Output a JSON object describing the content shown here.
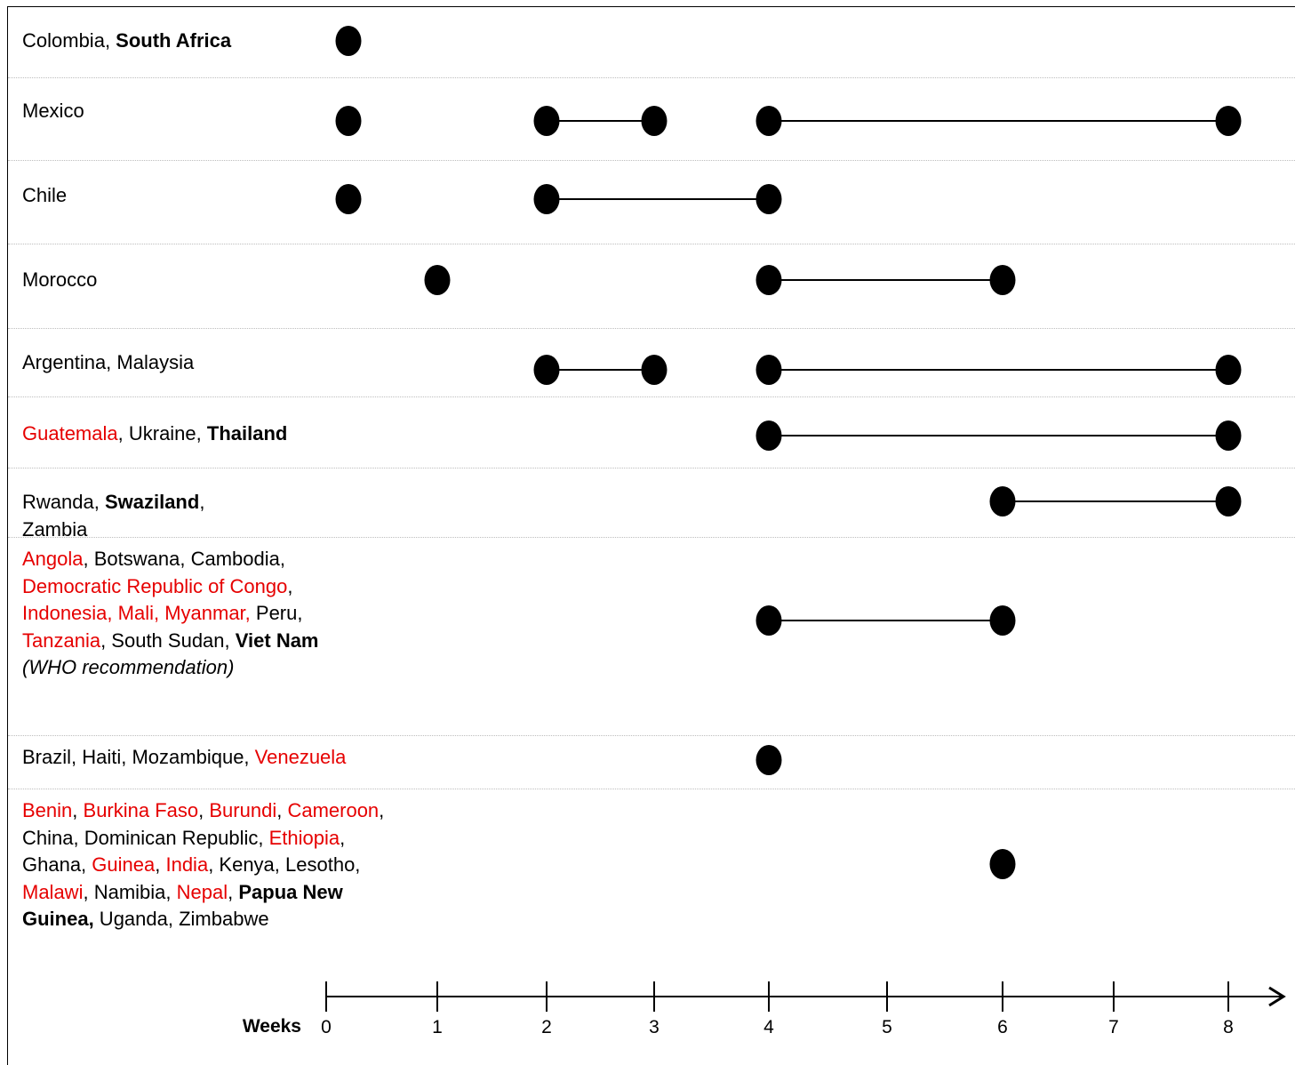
{
  "chart_data": {
    "type": "timeline",
    "x_axis": {
      "label": "Weeks",
      "ticks": [
        0,
        1,
        2,
        3,
        4,
        5,
        6,
        7,
        8
      ]
    },
    "rows": [
      {
        "countries": [
          {
            "t": "Colombia"
          },
          {
            "t": ", "
          },
          {
            "t": "South Africa",
            "b": true
          }
        ],
        "points": [
          0.2
        ],
        "ranges": []
      },
      {
        "countries": [
          {
            "t": "Mexico"
          }
        ],
        "points": [
          0.2
        ],
        "ranges": [
          [
            2,
            3
          ],
          [
            4,
            8
          ]
        ]
      },
      {
        "countries": [
          {
            "t": "Chile"
          }
        ],
        "points": [
          0.2
        ],
        "ranges": [
          [
            2,
            4
          ]
        ]
      },
      {
        "countries": [
          {
            "t": "Morocco"
          }
        ],
        "points": [
          1
        ],
        "ranges": [
          [
            4,
            6
          ]
        ]
      },
      {
        "countries": [
          {
            "t": "Argentina, Malaysia"
          }
        ],
        "points": [],
        "ranges": [
          [
            2,
            3
          ],
          [
            4,
            8
          ]
        ]
      },
      {
        "countries": [
          {
            "t": "Guatemala",
            "r": true
          },
          {
            "t": ", Ukraine, "
          },
          {
            "t": "Thailand",
            "b": true
          }
        ],
        "points": [],
        "ranges": [
          [
            4,
            8
          ]
        ]
      },
      {
        "countries": [
          {
            "t": "Rwanda, "
          },
          {
            "t": "Swaziland",
            "b": true
          },
          {
            "t": ","
          },
          {
            "br": true
          },
          {
            "t": "Zambia"
          }
        ],
        "points": [],
        "ranges": [
          [
            6,
            8
          ]
        ]
      },
      {
        "countries": [
          {
            "t": "Angola",
            "r": true
          },
          {
            "t": ", Botswana, Cambodia,"
          },
          {
            "br": true
          },
          {
            "t": "Democratic Republic of Congo",
            "r": true
          },
          {
            "t": ","
          },
          {
            "br": true
          },
          {
            "t": "Indonesia, Mali, Myanmar,",
            "r": true
          },
          {
            "t": " Peru,"
          },
          {
            "br": true
          },
          {
            "t": "Tanzania",
            "r": true
          },
          {
            "t": ", South Sudan, "
          },
          {
            "t": "Viet Nam",
            "b": true
          },
          {
            "br": true
          },
          {
            "t": "(WHO recommendation)",
            "i": true
          }
        ],
        "points": [],
        "ranges": [
          [
            4,
            6
          ]
        ]
      },
      {
        "countries": [
          {
            "t": "Brazil, Haiti, Mozambique, "
          },
          {
            "t": "Venezuela",
            "r": true
          }
        ],
        "points": [
          4
        ],
        "ranges": []
      },
      {
        "countries": [
          {
            "t": "Benin",
            "r": true
          },
          {
            "t": ", "
          },
          {
            "t": "Burkina Faso",
            "r": true
          },
          {
            "t": ", "
          },
          {
            "t": "Burundi",
            "r": true
          },
          {
            "t": ", "
          },
          {
            "t": "Cameroon",
            "r": true
          },
          {
            "t": ","
          },
          {
            "br": true
          },
          {
            "t": "China, Dominican Republic,  "
          },
          {
            "t": "Ethiopia",
            "r": true
          },
          {
            "t": ","
          },
          {
            "br": true
          },
          {
            "t": "Ghana, "
          },
          {
            "t": "Guinea",
            "r": true
          },
          {
            "t": ", "
          },
          {
            "t": "India",
            "r": true
          },
          {
            "t": ", Kenya, Lesotho,"
          },
          {
            "br": true
          },
          {
            "t": "Malawi",
            "r": true
          },
          {
            "t": ", Namibia, "
          },
          {
            "t": "Nepal",
            "r": true
          },
          {
            "t": ", "
          },
          {
            "t": "Papua New",
            "b": true
          },
          {
            "br": true
          },
          {
            "t": "Guinea,",
            "b": true
          },
          {
            "t": " Uganda, Zimbabwe"
          }
        ],
        "points": [
          6
        ],
        "ranges": []
      }
    ],
    "colors": {
      "highlight_text": "#e60000",
      "marker": "#000000",
      "separator": "#bdbdbd"
    }
  }
}
